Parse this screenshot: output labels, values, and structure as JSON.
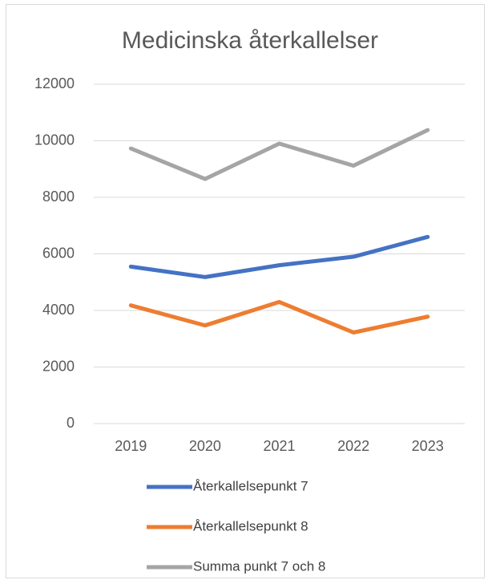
{
  "chart_data": {
    "type": "line",
    "title": "Medicinska återkallelser",
    "categories": [
      "2019",
      "2020",
      "2021",
      "2022",
      "2023"
    ],
    "series": [
      {
        "name": "Återkallelsepunkt 7",
        "color": "#4472c4",
        "values": [
          5550,
          5180,
          5600,
          5900,
          6600
        ]
      },
      {
        "name": "Återkallelsepunkt 8",
        "color": "#ed7d31",
        "values": [
          4180,
          3470,
          4300,
          3220,
          3780
        ]
      },
      {
        "name": "Summa punkt 7 och 8",
        "color": "#a5a5a5",
        "values": [
          9730,
          8650,
          9900,
          9120,
          10380
        ]
      }
    ],
    "ylim": [
      0,
      12000
    ],
    "yticks": [
      0,
      2000,
      4000,
      6000,
      8000,
      10000,
      12000
    ],
    "grid": true,
    "legend": "bottom"
  }
}
